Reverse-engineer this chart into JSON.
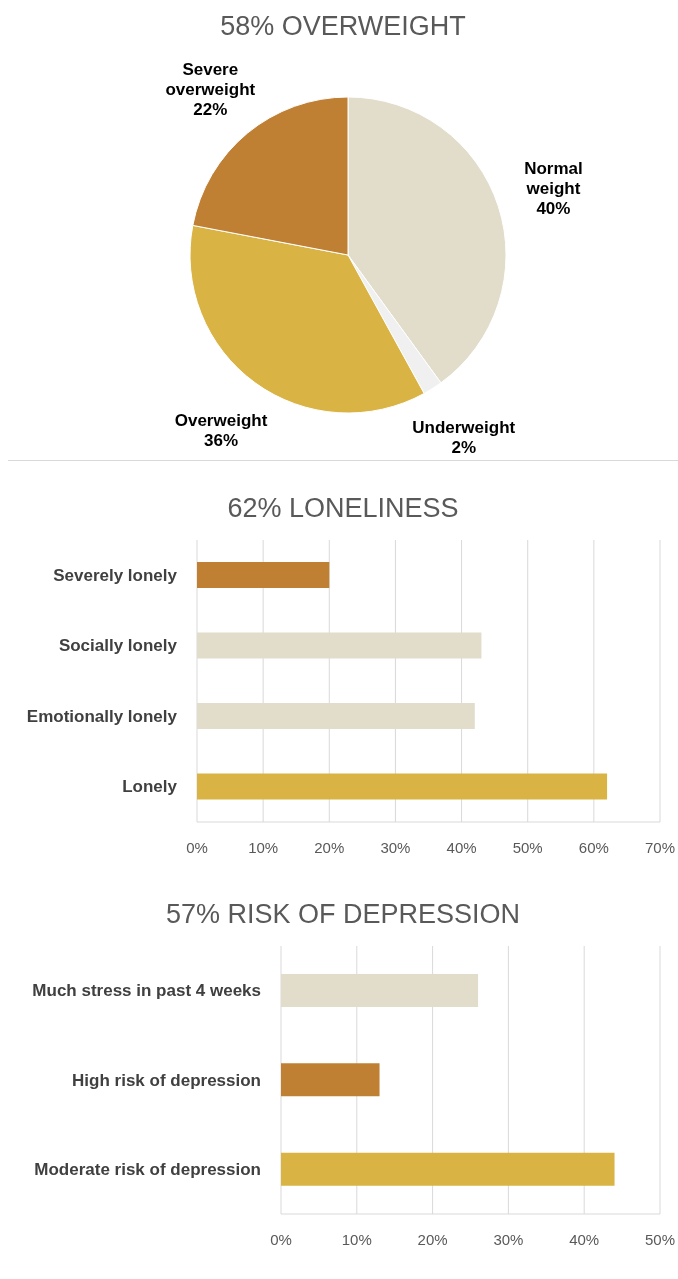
{
  "chart_data": [
    {
      "type": "pie",
      "title": "58% OVERWEIGHT",
      "categories": [
        "Normal weight",
        "Underweight",
        "Overweight",
        "Severe overweight"
      ],
      "values": [
        40,
        2,
        36,
        22
      ],
      "colors": [
        "#e2dccb",
        "#f0f0f0",
        "#d9b343",
        "#bf8034"
      ],
      "value_labels": [
        "40%",
        "2%",
        "36%",
        "22%"
      ]
    },
    {
      "type": "bar",
      "orientation": "horizontal",
      "title": "62% LONELINESS",
      "categories": [
        "Severely lonely",
        "Socially lonely",
        "Emotionally lonely",
        "Lonely"
      ],
      "values": [
        20,
        43,
        42,
        62
      ],
      "colors": [
        "#bf8034",
        "#e2dccb",
        "#e2dccb",
        "#d9b343"
      ],
      "xlim": [
        0,
        70
      ],
      "xticks": [
        {
          "value": 0,
          "label": "0%"
        },
        {
          "value": 10,
          "label": "10%"
        },
        {
          "value": 20,
          "label": "20%"
        },
        {
          "value": 30,
          "label": "30%"
        },
        {
          "value": 40,
          "label": "40%"
        },
        {
          "value": 50,
          "label": "50%"
        },
        {
          "value": 60,
          "label": "60%"
        },
        {
          "value": 70,
          "label": "70%"
        }
      ],
      "grid": "x"
    },
    {
      "type": "bar",
      "orientation": "horizontal",
      "title": "57% RISK OF DEPRESSION",
      "categories": [
        "Much stress in past 4 weeks",
        "High risk of depression",
        "Moderate risk of depression"
      ],
      "values": [
        26,
        13,
        44
      ],
      "colors": [
        "#e2dccb",
        "#bf8034",
        "#d9b343"
      ],
      "xlim": [
        0,
        50
      ],
      "xticks": [
        {
          "value": 0,
          "label": "0%"
        },
        {
          "value": 10,
          "label": "10%"
        },
        {
          "value": 20,
          "label": "20%"
        },
        {
          "value": 30,
          "label": "30%"
        },
        {
          "value": 40,
          "label": "40%"
        },
        {
          "value": 50,
          "label": "50%"
        }
      ],
      "grid": "x"
    }
  ]
}
